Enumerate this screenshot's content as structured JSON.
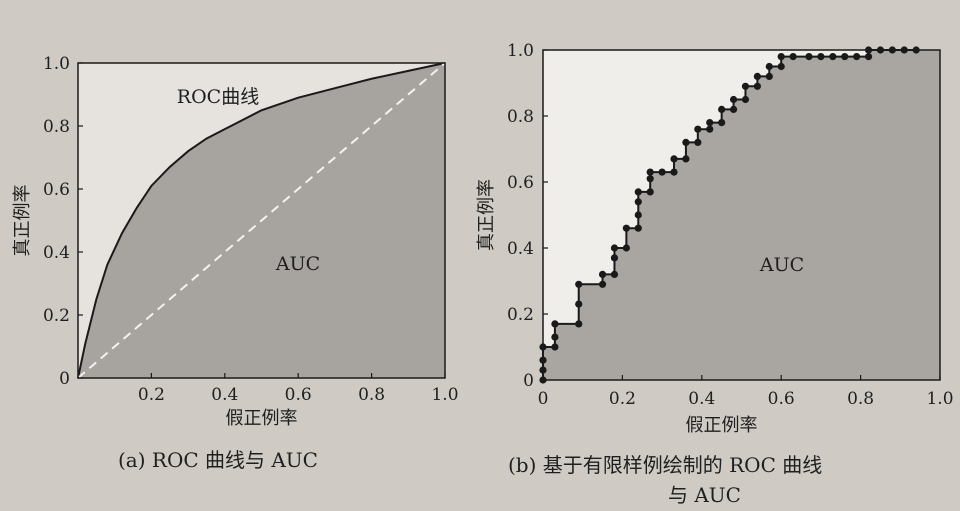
{
  "chart_data": [
    {
      "type": "area",
      "caption": "(a) ROC 曲线与 AUC",
      "xlabel": "假正例率",
      "ylabel": "真正例率",
      "xlim": [
        0,
        1.0
      ],
      "ylim": [
        0,
        1.0
      ],
      "x_ticks": [
        "0.2",
        "0.4",
        "0.6",
        "0.8",
        "1.0"
      ],
      "y_ticks": [
        "0",
        "0.2",
        "0.4",
        "0.6",
        "0.8",
        "1.0"
      ],
      "origin_label": "0",
      "grid": false,
      "annotations": {
        "curve": "ROC曲线",
        "area": "AUC"
      },
      "series": [
        {
          "style": "solid",
          "x": [
            0,
            0.02,
            0.05,
            0.08,
            0.12,
            0.16,
            0.2,
            0.25,
            0.3,
            0.35,
            0.4,
            0.5,
            0.6,
            0.7,
            0.8,
            0.9,
            1.0
          ],
          "y": [
            0,
            0.11,
            0.25,
            0.36,
            0.46,
            0.54,
            0.61,
            0.67,
            0.72,
            0.76,
            0.79,
            0.85,
            0.89,
            0.92,
            0.95,
            0.975,
            1.0
          ]
        },
        {
          "style": "dashed",
          "x": [
            0,
            1.0
          ],
          "y": [
            0,
            1.0
          ]
        }
      ]
    },
    {
      "type": "area",
      "caption_line1": "(b) 基于有限样例绘制的 ROC 曲线",
      "caption_line2": "与 AUC",
      "xlabel": "假正例率",
      "ylabel": "真正例率",
      "xlim": [
        0,
        1.0
      ],
      "ylim": [
        0,
        1.0
      ],
      "x_ticks": [
        "0",
        "0.2",
        "0.4",
        "0.6",
        "0.8",
        "1.0"
      ],
      "y_ticks": [
        "0",
        "0.2",
        "0.4",
        "0.6",
        "0.8",
        "1.0"
      ],
      "grid": false,
      "annotations": {
        "area": "AUC"
      },
      "series": [
        {
          "style": "step-points",
          "x": [
            0,
            0,
            0,
            0,
            0.03,
            0.03,
            0.03,
            0.09,
            0.09,
            0.09,
            0.15,
            0.15,
            0.18,
            0.18,
            0.18,
            0.21,
            0.21,
            0.24,
            0.24,
            0.24,
            0.24,
            0.27,
            0.27,
            0.27,
            0.3,
            0.33,
            0.33,
            0.36,
            0.36,
            0.39,
            0.39,
            0.42,
            0.42,
            0.45,
            0.45,
            0.48,
            0.48,
            0.51,
            0.51,
            0.54,
            0.54,
            0.57,
            0.57,
            0.6,
            0.6,
            0.63,
            0.67,
            0.7,
            0.73,
            0.76,
            0.79,
            0.82,
            0.82,
            0.85,
            0.88,
            0.91,
            0.94
          ],
          "y": [
            0,
            0.03,
            0.06,
            0.1,
            0.1,
            0.13,
            0.17,
            0.17,
            0.23,
            0.29,
            0.29,
            0.32,
            0.32,
            0.37,
            0.4,
            0.4,
            0.46,
            0.46,
            0.5,
            0.54,
            0.57,
            0.57,
            0.61,
            0.63,
            0.63,
            0.63,
            0.67,
            0.67,
            0.72,
            0.72,
            0.76,
            0.76,
            0.78,
            0.78,
            0.82,
            0.82,
            0.85,
            0.85,
            0.89,
            0.89,
            0.92,
            0.92,
            0.95,
            0.95,
            0.98,
            0.98,
            0.98,
            0.98,
            0.98,
            0.98,
            0.98,
            0.98,
            1.0,
            1.0,
            1.0,
            1.0,
            1.0
          ]
        }
      ]
    }
  ]
}
